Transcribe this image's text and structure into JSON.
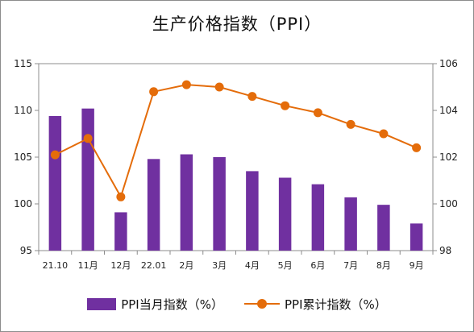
{
  "title": "生产价格指数（PPI）",
  "colors": {
    "bar": "#7030a0",
    "line": "#e46c0a",
    "axis": "#8c8c8c"
  },
  "chart_data": {
    "type": "bar+line",
    "title": "生产价格指数（PPI）",
    "categories": [
      "21.10",
      "11月",
      "12月",
      "22.01",
      "2月",
      "3月",
      "4月",
      "5月",
      "6月",
      "7月",
      "8月",
      "9月"
    ],
    "grid": false,
    "legend_position": "bottom",
    "y_left": {
      "min": 95,
      "max": 115,
      "ticks": [
        95,
        100,
        105,
        110,
        115
      ]
    },
    "y_right": {
      "min": 98,
      "max": 106,
      "ticks": [
        98,
        100,
        102,
        104,
        106
      ]
    },
    "series": [
      {
        "name": "PPI当月指数（%）",
        "kind": "bar",
        "axis": "left",
        "values": [
          109.4,
          110.2,
          99.1,
          104.8,
          105.3,
          105.0,
          103.5,
          102.8,
          102.1,
          100.7,
          99.9,
          97.9
        ]
      },
      {
        "name": "PPI累计指数（%）",
        "kind": "line",
        "axis": "right",
        "values": [
          102.1,
          102.8,
          100.3,
          104.8,
          105.1,
          105.0,
          104.6,
          104.2,
          103.9,
          103.4,
          103.0,
          102.4
        ]
      }
    ]
  }
}
